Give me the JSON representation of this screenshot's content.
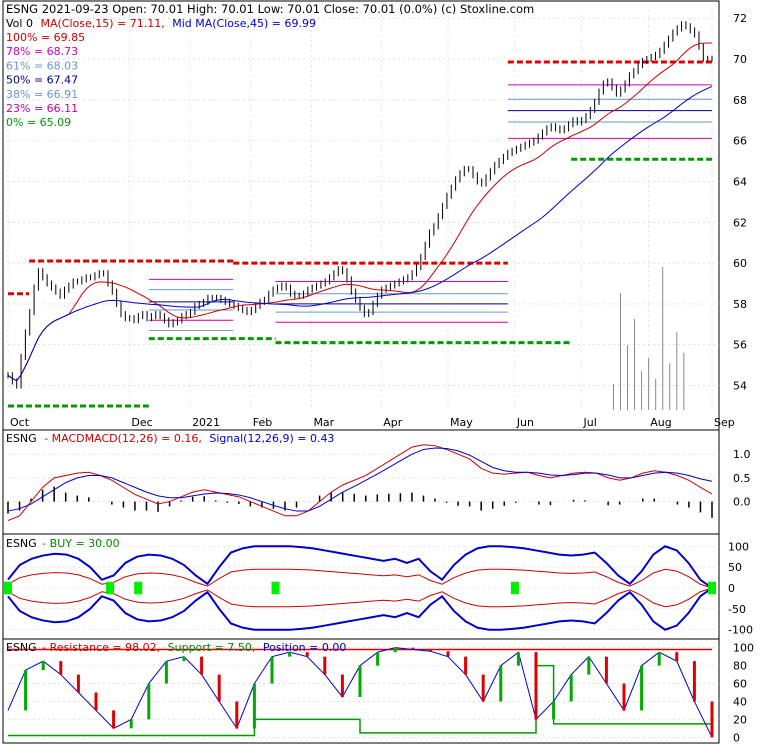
{
  "header": {
    "quote": "ESNG  2021-09-23 Open: 70.01  High: 70.01  Low: 70.01  Close: 70.01 (0.0%)  (c) Stoxline.com",
    "vol": "Vol 0",
    "ma15": "MA(Close,15) = 71.11,",
    "ma45": "Mid MA(Close,45) = 69.99"
  },
  "fib_legend": [
    {
      "label": "100% = 69.85",
      "color": "#cc0000"
    },
    {
      "label": "78% = 68.73",
      "color": "#cc00cc"
    },
    {
      "label": "61% = 68.03",
      "color": "#6699cc"
    },
    {
      "label": "50% = 67.47",
      "color": "#000088"
    },
    {
      "label": "38% = 66.91",
      "color": "#6699cc"
    },
    {
      "label": "23% = 66.11",
      "color": "#cc0099"
    },
    {
      "label": "0% = 65.09",
      "color": "#009900"
    }
  ],
  "macd": {
    "ticker": "ESNG",
    "label": "- MACDMACD(12,26) = 0.16,",
    "signal": "Signal(12,26,9) = 0.43"
  },
  "buy": {
    "ticker": "ESNG",
    "label": "- BUY = 30.00"
  },
  "resistance": {
    "ticker": "ESNG",
    "resistance": "- Resistance = 98.02,",
    "support": "Support = 7.50,",
    "position": "Position = 0.00"
  },
  "colors": {
    "up": "#000000",
    "ma15": "#cc0000",
    "ma45": "#0000cc",
    "resistance": "#dd0000",
    "support": "#009900",
    "buy": "#00ee00",
    "grid": "#cccccc"
  },
  "chart_data": [
    {
      "type": "candlestick",
      "panel": "price",
      "x_tick_labels": [
        "Oct",
        "Dec",
        "2021",
        "Feb",
        "Mar",
        "Apr",
        "May",
        "Jun",
        "Jul",
        "Aug",
        "Sep"
      ],
      "x_tick_index": [
        0,
        40,
        60,
        80,
        100,
        123,
        145,
        167,
        189,
        211,
        232
      ],
      "y_ticks": [
        54,
        56,
        58,
        60,
        62,
        64,
        66,
        68,
        70,
        72
      ],
      "ylim": [
        52.9,
        72.4
      ],
      "close": [
        54.5,
        54.2,
        54.0,
        55.4,
        56.6,
        57.6,
        58.8,
        59.6,
        59.3,
        59.0,
        58.8,
        58.6,
        58.4,
        58.7,
        58.9,
        59.1,
        59.1,
        59.2,
        59.3,
        59.3,
        59.4,
        59.5,
        59.5,
        59.0,
        58.6,
        58.0,
        57.5,
        57.3,
        57.3,
        57.2,
        57.4,
        57.5,
        57.3,
        57.4,
        57.5,
        57.4,
        57.2,
        57.0,
        57.1,
        57.2,
        57.4,
        57.5,
        57.6,
        57.9,
        58.0,
        58.1,
        58.3,
        58.3,
        58.3,
        58.2,
        58.1,
        58.0,
        57.9,
        57.8,
        57.7,
        57.6,
        57.7,
        57.9,
        58.1,
        58.2,
        58.5,
        58.7,
        58.8,
        58.9,
        58.8,
        58.5,
        58.4,
        58.4,
        58.5,
        58.7,
        58.8,
        58.9,
        59.0,
        59.1,
        59.3,
        59.5,
        59.7,
        59.6,
        59.2,
        58.6,
        58.2,
        57.8,
        57.5,
        57.6,
        58.0,
        58.4,
        58.7,
        58.8,
        58.9,
        59.0,
        59.1,
        59.2,
        59.3,
        59.5,
        59.8,
        60.3,
        60.9,
        61.5,
        61.8,
        62.3,
        62.8,
        63.3,
        63.7,
        64.1,
        64.4,
        64.6,
        64.6,
        64.3,
        64.0,
        63.9,
        64.2,
        64.5,
        64.8,
        65.0,
        65.2,
        65.4,
        65.5,
        65.6,
        65.7,
        65.8,
        65.9,
        66.0,
        66.2,
        66.4,
        66.6,
        66.7,
        66.6,
        66.5,
        66.6,
        66.8,
        67.0,
        66.9,
        67.0,
        67.2,
        67.5,
        67.9,
        68.4,
        68.8,
        68.9,
        68.6,
        68.3,
        68.5,
        68.8,
        69.2,
        69.4,
        69.7,
        69.9,
        70.0,
        70.1,
        70.2,
        70.4,
        70.7,
        71.0,
        71.3,
        71.5,
        71.7,
        71.6,
        71.4,
        71.2,
        70.6,
        70.01,
        70.01,
        70.01
      ]
    },
    {
      "type": "line",
      "panel": "macd",
      "y_ticks": [
        0.0,
        0.5,
        1.0
      ],
      "ylim": [
        -0.6,
        1.3
      ],
      "series": [
        {
          "name": "MACD(12,26)",
          "values": [
            -0.4,
            -0.3,
            0.0,
            0.3,
            0.5,
            0.55,
            0.6,
            0.62,
            0.55,
            0.45,
            0.3,
            0.15,
            0.05,
            -0.05,
            0.0,
            0.1,
            0.2,
            0.25,
            0.2,
            0.15,
            0.1,
            0.0,
            -0.1,
            -0.2,
            -0.3,
            -0.3,
            -0.2,
            0.0,
            0.2,
            0.35,
            0.45,
            0.55,
            0.7,
            0.85,
            1.0,
            1.15,
            1.2,
            1.18,
            1.1,
            1.0,
            0.9,
            0.7,
            0.6,
            0.58,
            0.6,
            0.62,
            0.55,
            0.5,
            0.55,
            0.6,
            0.62,
            0.6,
            0.5,
            0.45,
            0.5,
            0.6,
            0.65,
            0.62,
            0.55,
            0.45,
            0.3,
            0.16
          ]
        },
        {
          "name": "Signal(12,26,9)",
          "values": [
            -0.2,
            -0.15,
            -0.05,
            0.1,
            0.25,
            0.4,
            0.5,
            0.55,
            0.55,
            0.5,
            0.4,
            0.3,
            0.2,
            0.12,
            0.08,
            0.08,
            0.12,
            0.16,
            0.18,
            0.17,
            0.14,
            0.08,
            0.0,
            -0.08,
            -0.15,
            -0.2,
            -0.2,
            -0.1,
            0.05,
            0.2,
            0.32,
            0.45,
            0.58,
            0.72,
            0.86,
            1.0,
            1.1,
            1.13,
            1.12,
            1.07,
            0.98,
            0.85,
            0.72,
            0.65,
            0.62,
            0.62,
            0.6,
            0.56,
            0.55,
            0.57,
            0.6,
            0.6,
            0.56,
            0.5,
            0.5,
            0.55,
            0.6,
            0.62,
            0.6,
            0.55,
            0.48,
            0.43
          ]
        }
      ]
    },
    {
      "type": "line",
      "panel": "buy",
      "y_ticks": [
        -100,
        -50,
        0,
        50,
        100
      ],
      "ylim": [
        -115,
        115
      ],
      "series": [
        {
          "name": "upper-band",
          "values": [
            20,
            55,
            70,
            78,
            82,
            80,
            70,
            50,
            20,
            30,
            60,
            75,
            80,
            78,
            70,
            55,
            30,
            10,
            50,
            85,
            95,
            100,
            100,
            100,
            100,
            98,
            95,
            90,
            85,
            80,
            75,
            70,
            65,
            70,
            60,
            70,
            40,
            20,
            55,
            80,
            95,
            100,
            100,
            98,
            95,
            90,
            85,
            80,
            78,
            80,
            85,
            60,
            30,
            10,
            40,
            80,
            100,
            90,
            60,
            20,
            0
          ]
        },
        {
          "name": "lower-band",
          "values": [
            -20,
            -55,
            -70,
            -78,
            -82,
            -80,
            -70,
            -50,
            -20,
            -30,
            -60,
            -75,
            -80,
            -78,
            -70,
            -55,
            -30,
            -10,
            -50,
            -85,
            -95,
            -100,
            -100,
            -100,
            -100,
            -98,
            -95,
            -90,
            -85,
            -80,
            -75,
            -70,
            -65,
            -70,
            -60,
            -70,
            -40,
            -20,
            -55,
            -80,
            -95,
            -100,
            -100,
            -98,
            -95,
            -90,
            -85,
            -80,
            -78,
            -80,
            -85,
            -60,
            -30,
            -10,
            -40,
            -80,
            -100,
            -90,
            -60,
            -20,
            0
          ]
        }
      ],
      "value": 30.0
    },
    {
      "type": "line",
      "panel": "resistance",
      "y_ticks": [
        0,
        20,
        40,
        60,
        80,
        100
      ],
      "ylim": [
        -3,
        103
      ],
      "series": [
        {
          "name": "Resistance",
          "values": [
            98,
            98,
            98,
            98,
            98,
            98,
            98,
            98,
            98,
            98,
            98,
            98,
            98,
            98,
            98,
            98,
            98,
            98,
            98,
            98,
            98,
            98,
            98,
            98,
            98,
            98,
            98,
            98,
            98,
            98,
            98,
            98,
            98,
            98,
            98,
            98,
            98,
            98,
            98,
            98,
            98.02
          ]
        },
        {
          "name": "Support",
          "values": [
            2,
            2,
            2,
            2,
            2,
            2,
            2,
            2,
            2,
            2,
            2,
            2,
            2,
            2,
            20,
            20,
            20,
            20,
            20,
            20,
            5,
            5,
            5,
            5,
            5,
            5,
            5,
            5,
            5,
            5,
            80,
            15,
            15,
            15,
            15,
            15,
            15,
            15,
            15,
            15,
            7.5
          ]
        },
        {
          "name": "Position",
          "values": [
            30,
            75,
            85,
            70,
            50,
            30,
            10,
            20,
            60,
            85,
            90,
            70,
            40,
            10,
            60,
            90,
            95,
            90,
            70,
            45,
            80,
            95,
            100,
            98,
            96,
            90,
            70,
            40,
            80,
            95,
            20,
            40,
            70,
            90,
            60,
            30,
            80,
            95,
            85,
            40,
            0
          ]
        }
      ]
    }
  ]
}
